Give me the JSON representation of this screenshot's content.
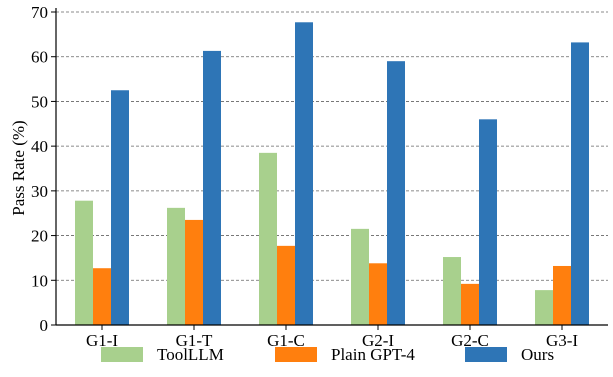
{
  "chart_data": {
    "type": "bar",
    "title": "",
    "xlabel": "",
    "ylabel": "Pass Rate (%)",
    "ylim": [
      0,
      70
    ],
    "yticks": [
      0,
      10,
      20,
      30,
      40,
      50,
      60,
      70
    ],
    "grid": "horizontal dashed",
    "legend_position": "bottom",
    "categories": [
      "G1-I",
      "G1-T",
      "G1-C",
      "G2-I",
      "G2-C",
      "G3-I"
    ],
    "series": [
      {
        "name": "ToolLLM",
        "color": "#a8d08d",
        "values": [
          27.8,
          26.2,
          38.5,
          21.5,
          15.2,
          7.8
        ]
      },
      {
        "name": "Plain GPT-4",
        "color": "#ff7f0e",
        "values": [
          12.7,
          23.5,
          17.7,
          13.8,
          9.2,
          13.2
        ]
      },
      {
        "name": "Ours",
        "color": "#2e75b6",
        "values": [
          52.5,
          61.3,
          67.7,
          59.0,
          46.0,
          63.2
        ]
      }
    ]
  }
}
